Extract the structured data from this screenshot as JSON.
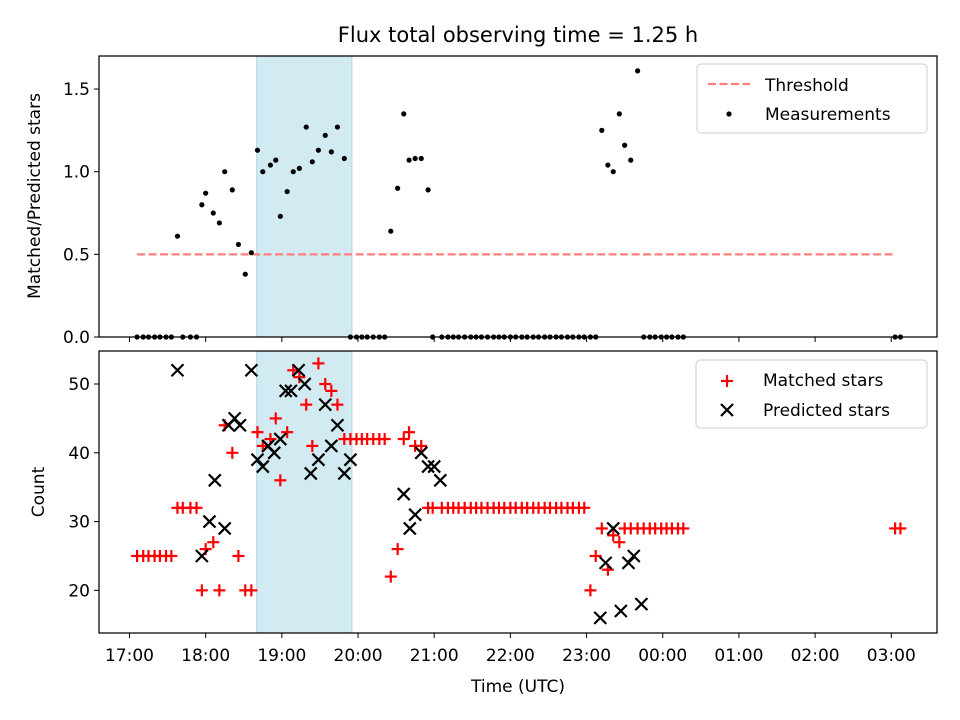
{
  "figure": {
    "title": "Flux total observing time = 1.25 h",
    "shaded_interval": [
      18.67,
      19.92
    ],
    "x_ticks": [
      "17:00",
      "18:00",
      "19:00",
      "20:00",
      "21:00",
      "22:00",
      "23:00",
      "00:00",
      "01:00",
      "02:00",
      "03:00"
    ],
    "xlabel": "Time (UTC)",
    "shade_color": "#add8e6"
  },
  "chart_data": [
    {
      "type": "scatter",
      "title": "Flux total observing time = 1.25 h",
      "xlabel": "",
      "ylabel": "Matched/Predicted stars",
      "xlim": [
        16.6,
        27.6
      ],
      "ylim": [
        0,
        1.7
      ],
      "yticks": [
        "0.0",
        "0.5",
        "1.0",
        "1.5"
      ],
      "legend_position": "top-right",
      "threshold": {
        "name": "Threshold",
        "value": 0.5,
        "x_range": [
          17.1,
          27.05
        ],
        "color": "#ff7f7f"
      },
      "series": [
        {
          "name": "Measurements",
          "color": "#000000",
          "marker": "dot",
          "x": [
            17.1,
            17.18,
            17.25,
            17.33,
            17.4,
            17.48,
            17.55,
            17.63,
            17.7,
            17.8,
            17.88,
            17.95,
            18.0,
            18.1,
            18.18,
            18.25,
            18.35,
            18.43,
            18.52,
            18.6,
            18.68,
            18.75,
            18.85,
            18.92,
            18.98,
            19.07,
            19.15,
            19.23,
            19.32,
            19.4,
            19.48,
            19.57,
            19.65,
            19.73,
            19.82,
            19.9,
            19.98,
            20.05,
            20.12,
            20.2,
            20.28,
            20.35,
            20.43,
            20.52,
            20.6,
            20.67,
            20.75,
            20.83,
            20.92,
            20.98,
            21.1,
            21.18,
            21.25,
            21.32,
            21.4,
            21.48,
            21.55,
            21.62,
            21.7,
            21.78,
            21.85,
            21.92,
            22.0,
            22.07,
            22.15,
            22.22,
            22.3,
            22.37,
            22.45,
            22.52,
            22.6,
            22.67,
            22.75,
            22.82,
            22.9,
            22.97,
            23.05,
            23.12,
            23.2,
            23.28,
            23.35,
            23.43,
            23.5,
            23.58,
            23.67,
            23.75,
            23.83,
            23.9,
            23.98,
            24.05,
            24.12,
            24.2,
            24.27,
            27.05,
            27.12
          ],
          "y": [
            0,
            0,
            0,
            0,
            0,
            0,
            0,
            0.61,
            0,
            0,
            0,
            0.8,
            0.87,
            0.75,
            0.69,
            1.0,
            0.89,
            0.56,
            0.38,
            0.51,
            1.13,
            1.0,
            1.04,
            1.07,
            0.73,
            0.88,
            1.0,
            1.02,
            1.27,
            1.06,
            1.13,
            1.22,
            1.12,
            1.27,
            1.08,
            0,
            0,
            0,
            0,
            0,
            0,
            0,
            0.64,
            0.9,
            1.35,
            1.07,
            1.08,
            1.08,
            0.89,
            0,
            0,
            0,
            0,
            0,
            0,
            0,
            0,
            0,
            0,
            0,
            0,
            0,
            0,
            0,
            0,
            0,
            0,
            0,
            0,
            0,
            0,
            0,
            0,
            0,
            0,
            0,
            0,
            0,
            1.25,
            1.04,
            1.0,
            1.35,
            1.16,
            1.07,
            1.61,
            0,
            0,
            0,
            0,
            0,
            0,
            0,
            0,
            0,
            0
          ]
        }
      ]
    },
    {
      "type": "scatter",
      "title": "",
      "xlabel": "Time (UTC)",
      "ylabel": "Count",
      "xlim": [
        16.6,
        27.6
      ],
      "ylim": [
        13.8,
        54.8
      ],
      "yticks": [
        "20",
        "30",
        "40",
        "50"
      ],
      "legend_position": "top-right",
      "series": [
        {
          "name": "Matched stars",
          "color": "#ff0000",
          "marker": "plus",
          "x": [
            17.1,
            17.18,
            17.25,
            17.33,
            17.4,
            17.48,
            17.55,
            17.63,
            17.7,
            17.8,
            17.88,
            17.95,
            18.0,
            18.1,
            18.18,
            18.25,
            18.35,
            18.43,
            18.52,
            18.6,
            18.68,
            18.75,
            18.85,
            18.92,
            18.98,
            19.07,
            19.15,
            19.23,
            19.32,
            19.4,
            19.48,
            19.57,
            19.65,
            19.73,
            19.82,
            19.9,
            19.98,
            20.05,
            20.12,
            20.2,
            20.28,
            20.35,
            20.43,
            20.52,
            20.6,
            20.67,
            20.75,
            20.83,
            20.92,
            20.98,
            21.1,
            21.18,
            21.25,
            21.32,
            21.4,
            21.48,
            21.55,
            21.62,
            21.7,
            21.78,
            21.85,
            21.92,
            22.0,
            22.07,
            22.15,
            22.22,
            22.3,
            22.37,
            22.45,
            22.52,
            22.6,
            22.67,
            22.75,
            22.82,
            22.9,
            22.97,
            23.05,
            23.12,
            23.2,
            23.28,
            23.35,
            23.43,
            23.5,
            23.58,
            23.67,
            23.75,
            23.83,
            23.9,
            23.98,
            24.05,
            24.12,
            24.2,
            24.27,
            27.05,
            27.12
          ],
          "y": [
            25,
            25,
            25,
            25,
            25,
            25,
            25,
            32,
            32,
            32,
            32,
            20,
            26,
            27,
            20,
            44,
            40,
            25,
            20,
            20,
            43,
            41,
            42,
            45,
            36,
            43,
            52,
            51,
            47,
            41,
            53,
            50,
            49,
            47,
            42,
            42,
            42,
            42,
            42,
            42,
            42,
            42,
            22,
            26,
            42,
            43,
            41,
            41,
            32,
            32,
            32,
            32,
            32,
            32,
            32,
            32,
            32,
            32,
            32,
            32,
            32,
            32,
            32,
            32,
            32,
            32,
            32,
            32,
            32,
            32,
            32,
            32,
            32,
            32,
            32,
            32,
            20,
            25,
            29,
            23,
            28,
            27,
            29,
            29,
            29,
            29,
            29,
            29,
            29,
            29,
            29,
            29,
            29,
            29,
            29
          ]
        },
        {
          "name": "Predicted stars",
          "color": "#000000",
          "marker": "x",
          "x": [
            17.63,
            17.95,
            18.05,
            18.12,
            18.25,
            18.3,
            18.38,
            18.45,
            18.6,
            18.68,
            18.75,
            18.82,
            18.9,
            18.98,
            19.05,
            19.12,
            19.22,
            19.3,
            19.38,
            19.48,
            19.57,
            19.65,
            19.73,
            19.82,
            19.9,
            20.6,
            20.68,
            20.75,
            20.83,
            20.92,
            21.0,
            21.08,
            23.18,
            23.25,
            23.35,
            23.45,
            23.55,
            23.62,
            23.72
          ],
          "y": [
            52,
            25,
            30,
            36,
            29,
            44,
            45,
            44,
            52,
            39,
            38,
            41,
            40,
            42,
            49,
            49,
            52,
            50,
            37,
            39,
            47,
            41,
            44,
            37,
            39,
            34,
            29,
            31,
            40,
            38,
            38,
            36,
            16,
            24,
            29,
            17,
            24,
            25,
            18
          ]
        }
      ]
    }
  ]
}
